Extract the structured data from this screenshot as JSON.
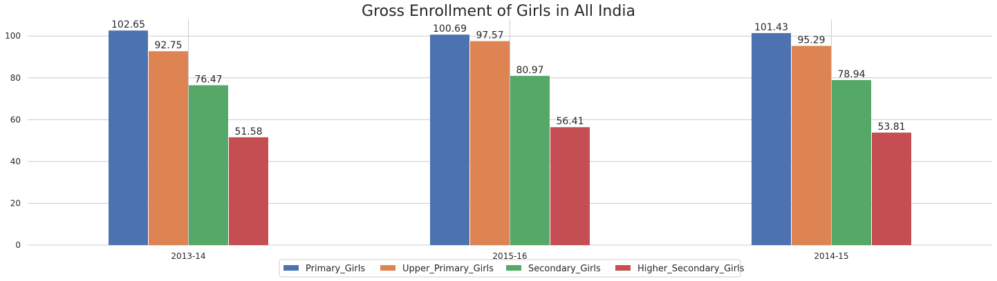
{
  "chart_data": {
    "type": "bar",
    "title": "Gross Enrollment of Girls in All India",
    "xlabel": "",
    "ylabel": "",
    "categories": [
      "2013-14",
      "2015-16",
      "2014-15"
    ],
    "series": [
      {
        "name": "Primary_Girls",
        "color": "#4c72b0",
        "values": [
          102.65,
          100.69,
          101.43
        ]
      },
      {
        "name": "Upper_Primary_Girls",
        "color": "#dd8452",
        "values": [
          92.75,
          97.57,
          95.29
        ]
      },
      {
        "name": "Secondary_Girls",
        "color": "#55a868",
        "values": [
          76.47,
          80.97,
          78.94
        ]
      },
      {
        "name": "Higher_Secondary_Girls",
        "color": "#c44e52",
        "values": [
          51.58,
          56.41,
          53.81
        ]
      }
    ],
    "ylim": [
      0,
      108
    ],
    "yticks": [
      0,
      20,
      40,
      60,
      80,
      100
    ],
    "grid": true,
    "legend_position": "bottom-center"
  }
}
